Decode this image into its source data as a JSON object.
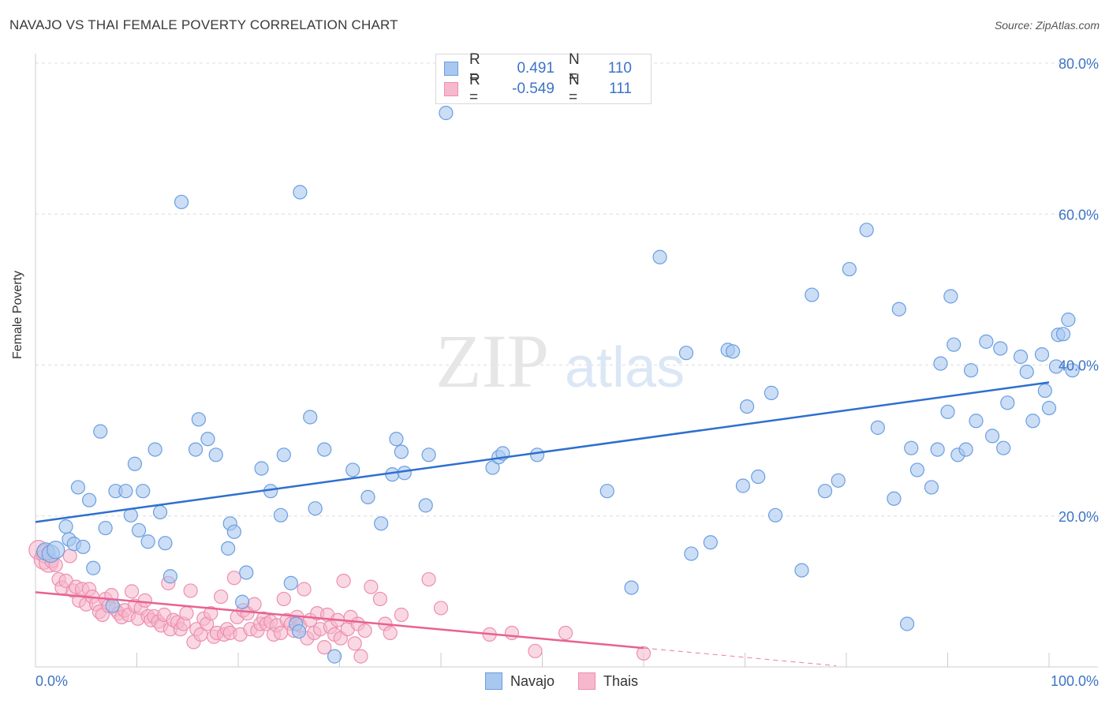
{
  "header": {
    "title": "NAVAJO VS THAI FEMALE POVERTY CORRELATION CHART",
    "source": "Source: ZipAtlas.com"
  },
  "watermark": {
    "zip": "ZIP",
    "atlas": "atlas"
  },
  "legend_top": {
    "rows": [
      {
        "r_label": "R =",
        "r_value": "0.491",
        "n_label": "N =",
        "n_value": "110"
      },
      {
        "r_label": "R =",
        "r_value": "-0.549",
        "n_label": "N =",
        "n_value": "111"
      }
    ]
  },
  "legend_bottom": {
    "items": [
      "Navajo",
      "Thais"
    ]
  },
  "colors": {
    "navajo_fill": "#a8c8f0",
    "navajo_stroke": "#6a9ee0",
    "navajo_line": "#2f6fcf",
    "thai_fill": "#f6b8cc",
    "thai_stroke": "#ec8fae",
    "thai_line": "#e8628f",
    "axis_text": "#3d74c6",
    "grid": "#dddddd"
  },
  "chart_data": {
    "type": "scatter",
    "title": "NAVAJO VS THAI FEMALE POVERTY CORRELATION CHART",
    "xlabel": "",
    "ylabel": "Female Poverty",
    "xlim": [
      0,
      100
    ],
    "ylim": [
      0,
      80
    ],
    "x_tick_labels": [
      "0.0%",
      "100.0%"
    ],
    "y_ticks": [
      20,
      40,
      60,
      80
    ],
    "y_tick_labels": [
      "20.0%",
      "40.0%",
      "60.0%",
      "80.0%"
    ],
    "grid": true,
    "legend_placement": "bottom-center",
    "series": [
      {
        "name": "Navajo",
        "r": 0.491,
        "n": 110,
        "trend": {
          "x": [
            0,
            100
          ],
          "y": [
            19.2,
            37.7
          ]
        },
        "points": [
          [
            1.0,
            15.3
          ],
          [
            1.5,
            15.0
          ],
          [
            2.0,
            15.5
          ],
          [
            3.0,
            18.6
          ],
          [
            3.3,
            16.9
          ],
          [
            3.8,
            16.3
          ],
          [
            4.2,
            23.8
          ],
          [
            4.7,
            15.9
          ],
          [
            5.3,
            22.1
          ],
          [
            5.7,
            13.1
          ],
          [
            6.4,
            31.2
          ],
          [
            6.9,
            18.4
          ],
          [
            7.6,
            8.1
          ],
          [
            7.9,
            23.3
          ],
          [
            8.9,
            23.3
          ],
          [
            9.4,
            20.1
          ],
          [
            9.8,
            26.9
          ],
          [
            10.2,
            18.1
          ],
          [
            10.6,
            23.3
          ],
          [
            11.1,
            16.6
          ],
          [
            11.8,
            28.8
          ],
          [
            12.3,
            20.5
          ],
          [
            12.8,
            16.4
          ],
          [
            13.3,
            12.0
          ],
          [
            14.4,
            61.6
          ],
          [
            15.8,
            28.8
          ],
          [
            16.1,
            32.8
          ],
          [
            17.0,
            30.2
          ],
          [
            17.8,
            28.1
          ],
          [
            19.0,
            15.7
          ],
          [
            19.2,
            19.0
          ],
          [
            19.6,
            17.9
          ],
          [
            20.4,
            8.6
          ],
          [
            20.8,
            12.5
          ],
          [
            22.3,
            26.3
          ],
          [
            23.2,
            23.3
          ],
          [
            24.2,
            20.1
          ],
          [
            24.5,
            28.1
          ],
          [
            25.2,
            11.1
          ],
          [
            25.7,
            5.7
          ],
          [
            26.0,
            4.7
          ],
          [
            26.1,
            62.9
          ],
          [
            27.1,
            33.1
          ],
          [
            27.6,
            21.0
          ],
          [
            28.5,
            28.8
          ],
          [
            29.5,
            1.4
          ],
          [
            31.3,
            26.1
          ],
          [
            32.8,
            22.5
          ],
          [
            34.1,
            19.0
          ],
          [
            35.2,
            25.5
          ],
          [
            35.6,
            30.2
          ],
          [
            36.1,
            28.5
          ],
          [
            36.4,
            25.7
          ],
          [
            38.5,
            21.4
          ],
          [
            38.8,
            28.1
          ],
          [
            40.5,
            73.4
          ],
          [
            45.1,
            26.4
          ],
          [
            45.7,
            27.8
          ],
          [
            46.1,
            28.3
          ],
          [
            49.5,
            28.1
          ],
          [
            56.4,
            23.3
          ],
          [
            58.8,
            10.5
          ],
          [
            61.6,
            54.3
          ],
          [
            64.2,
            41.6
          ],
          [
            64.7,
            15.0
          ],
          [
            66.6,
            16.5
          ],
          [
            68.3,
            42.0
          ],
          [
            68.8,
            41.8
          ],
          [
            69.8,
            24.0
          ],
          [
            70.2,
            34.5
          ],
          [
            71.3,
            25.2
          ],
          [
            72.6,
            36.3
          ],
          [
            73.0,
            20.1
          ],
          [
            75.6,
            12.8
          ],
          [
            76.6,
            49.3
          ],
          [
            77.9,
            23.3
          ],
          [
            79.2,
            24.7
          ],
          [
            80.3,
            52.7
          ],
          [
            82.0,
            57.9
          ],
          [
            83.1,
            31.7
          ],
          [
            84.7,
            22.3
          ],
          [
            85.2,
            47.4
          ],
          [
            86.0,
            5.7
          ],
          [
            86.4,
            29.0
          ],
          [
            87.0,
            26.1
          ],
          [
            88.4,
            23.8
          ],
          [
            89.0,
            28.8
          ],
          [
            89.3,
            40.2
          ],
          [
            90.0,
            33.8
          ],
          [
            90.3,
            49.1
          ],
          [
            90.6,
            42.7
          ],
          [
            91.0,
            28.1
          ],
          [
            91.8,
            28.8
          ],
          [
            92.3,
            39.3
          ],
          [
            92.8,
            32.6
          ],
          [
            93.8,
            43.1
          ],
          [
            94.4,
            30.6
          ],
          [
            95.2,
            42.2
          ],
          [
            95.5,
            29.0
          ],
          [
            95.9,
            35.0
          ],
          [
            97.2,
            41.1
          ],
          [
            97.8,
            39.1
          ],
          [
            98.4,
            32.6
          ],
          [
            99.3,
            41.4
          ],
          [
            99.6,
            36.6
          ],
          [
            100.0,
            34.3
          ],
          [
            100.7,
            39.8
          ],
          [
            100.9,
            44.0
          ],
          [
            101.4,
            44.1
          ],
          [
            101.9,
            46.0
          ],
          [
            102.3,
            39.3
          ]
        ]
      },
      {
        "name": "Thais",
        "r": -0.549,
        "n": 111,
        "trend": {
          "x": [
            0,
            60
          ],
          "y": [
            9.9,
            2.5
          ]
        },
        "points": [
          [
            0.3,
            15.5
          ],
          [
            0.8,
            14.2
          ],
          [
            1.0,
            15.0
          ],
          [
            1.3,
            13.8
          ],
          [
            1.6,
            14.0
          ],
          [
            2.0,
            13.5
          ],
          [
            2.3,
            11.6
          ],
          [
            2.6,
            10.5
          ],
          [
            3.0,
            11.4
          ],
          [
            3.4,
            14.7
          ],
          [
            3.7,
            10.1
          ],
          [
            4.0,
            10.6
          ],
          [
            4.3,
            8.8
          ],
          [
            4.6,
            10.3
          ],
          [
            5.0,
            8.3
          ],
          [
            5.3,
            10.3
          ],
          [
            5.6,
            9.3
          ],
          [
            6.0,
            8.3
          ],
          [
            6.3,
            7.3
          ],
          [
            6.6,
            6.9
          ],
          [
            6.9,
            9.0
          ],
          [
            7.2,
            8.1
          ],
          [
            7.5,
            9.5
          ],
          [
            7.9,
            7.6
          ],
          [
            8.2,
            7.1
          ],
          [
            8.5,
            6.6
          ],
          [
            8.8,
            7.5
          ],
          [
            9.2,
            6.9
          ],
          [
            9.5,
            10.0
          ],
          [
            9.8,
            8.1
          ],
          [
            10.1,
            6.4
          ],
          [
            10.4,
            7.8
          ],
          [
            10.8,
            8.8
          ],
          [
            11.1,
            6.7
          ],
          [
            11.4,
            6.2
          ],
          [
            11.7,
            6.7
          ],
          [
            12.1,
            6.0
          ],
          [
            12.4,
            5.5
          ],
          [
            12.7,
            6.9
          ],
          [
            13.1,
            11.1
          ],
          [
            13.3,
            5.0
          ],
          [
            13.6,
            6.2
          ],
          [
            14.0,
            5.9
          ],
          [
            14.3,
            5.0
          ],
          [
            14.6,
            5.7
          ],
          [
            14.9,
            7.1
          ],
          [
            15.3,
            10.1
          ],
          [
            15.6,
            3.3
          ],
          [
            15.9,
            5.0
          ],
          [
            16.3,
            4.3
          ],
          [
            16.6,
            6.4
          ],
          [
            16.9,
            5.7
          ],
          [
            17.3,
            7.1
          ],
          [
            17.6,
            4.0
          ],
          [
            17.9,
            4.5
          ],
          [
            18.3,
            9.3
          ],
          [
            18.6,
            4.3
          ],
          [
            18.9,
            5.0
          ],
          [
            19.2,
            4.5
          ],
          [
            19.6,
            11.8
          ],
          [
            19.9,
            6.6
          ],
          [
            20.2,
            4.3
          ],
          [
            20.5,
            7.5
          ],
          [
            20.9,
            7.1
          ],
          [
            21.2,
            5.0
          ],
          [
            21.6,
            8.3
          ],
          [
            21.9,
            4.8
          ],
          [
            22.2,
            5.7
          ],
          [
            22.5,
            6.4
          ],
          [
            22.8,
            5.7
          ],
          [
            23.2,
            6.0
          ],
          [
            23.5,
            4.3
          ],
          [
            23.8,
            5.5
          ],
          [
            24.2,
            4.5
          ],
          [
            24.5,
            9.0
          ],
          [
            24.8,
            6.2
          ],
          [
            25.2,
            5.7
          ],
          [
            25.5,
            4.8
          ],
          [
            25.8,
            6.6
          ],
          [
            26.1,
            5.5
          ],
          [
            26.5,
            10.3
          ],
          [
            26.8,
            3.8
          ],
          [
            27.1,
            6.2
          ],
          [
            27.5,
            4.5
          ],
          [
            27.8,
            7.1
          ],
          [
            28.1,
            5.0
          ],
          [
            28.5,
            2.6
          ],
          [
            28.8,
            6.9
          ],
          [
            29.1,
            5.3
          ],
          [
            29.5,
            4.3
          ],
          [
            29.8,
            6.2
          ],
          [
            30.1,
            3.8
          ],
          [
            30.4,
            11.4
          ],
          [
            30.8,
            5.0
          ],
          [
            31.1,
            6.6
          ],
          [
            31.5,
            3.1
          ],
          [
            31.8,
            5.7
          ],
          [
            32.1,
            1.4
          ],
          [
            32.5,
            4.8
          ],
          [
            33.1,
            10.6
          ],
          [
            34.0,
            9.0
          ],
          [
            34.5,
            5.7
          ],
          [
            35.0,
            4.5
          ],
          [
            36.1,
            6.9
          ],
          [
            38.8,
            11.6
          ],
          [
            40.0,
            7.8
          ],
          [
            44.8,
            4.3
          ],
          [
            47.0,
            4.5
          ],
          [
            49.3,
            2.1
          ],
          [
            52.3,
            4.5
          ],
          [
            60.0,
            1.8
          ]
        ]
      }
    ]
  }
}
